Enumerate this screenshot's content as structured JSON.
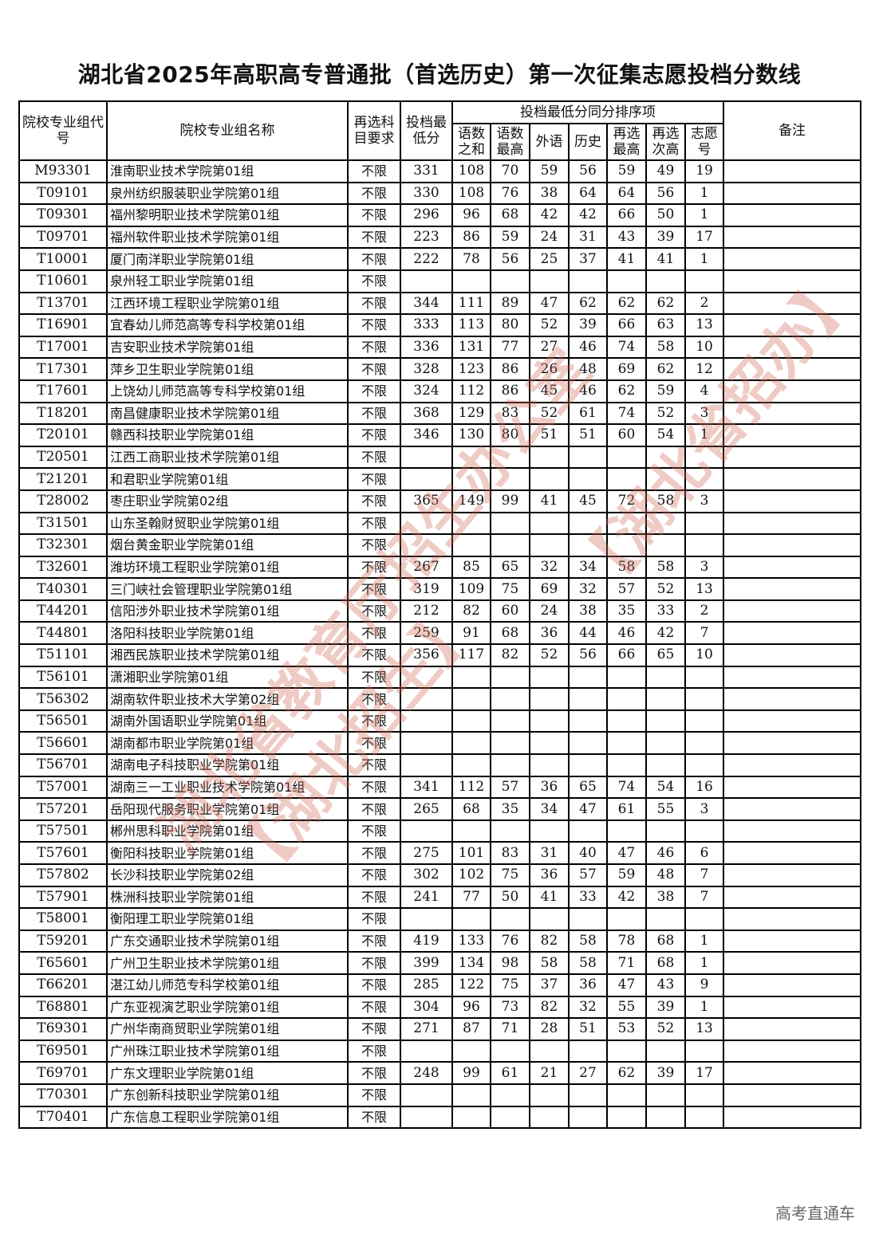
{
  "title": "湖北省2025年高职高专普通批（首选历史）第一次征集志愿投档分数线",
  "headers": {
    "code": "院校专业组代号",
    "name": "院校专业组名称",
    "req": "再选科目要求",
    "score": "投档最低分",
    "tiebreak_group": "投档最低分同分排序项",
    "sub": [
      "语数之和",
      "语数最高",
      "外语",
      "历史",
      "再选最高",
      "再选次高",
      "志愿号"
    ],
    "note": "备注"
  },
  "rows": [
    [
      "M93301",
      "淮南职业技术学院第01组",
      "不限",
      "331",
      "108",
      "70",
      "59",
      "56",
      "59",
      "49",
      "19"
    ],
    [
      "T09101",
      "泉州纺织服装职业学院第01组",
      "不限",
      "330",
      "108",
      "76",
      "38",
      "64",
      "64",
      "56",
      "1"
    ],
    [
      "T09301",
      "福州黎明职业技术学院第01组",
      "不限",
      "296",
      "96",
      "68",
      "42",
      "42",
      "66",
      "50",
      "1"
    ],
    [
      "T09701",
      "福州软件职业技术学院第01组",
      "不限",
      "223",
      "86",
      "59",
      "24",
      "31",
      "43",
      "39",
      "17"
    ],
    [
      "T10001",
      "厦门南洋职业学院第01组",
      "不限",
      "222",
      "78",
      "56",
      "25",
      "37",
      "41",
      "41",
      "1"
    ],
    [
      "T10601",
      "泉州轻工职业学院第01组",
      "不限",
      "",
      "",
      "",
      "",
      "",
      "",
      "",
      ""
    ],
    [
      "T13701",
      "江西环境工程职业学院第01组",
      "不限",
      "344",
      "111",
      "89",
      "47",
      "62",
      "62",
      "62",
      "2"
    ],
    [
      "T16901",
      "宜春幼儿师范高等专科学校第01组",
      "不限",
      "333",
      "113",
      "80",
      "52",
      "39",
      "66",
      "63",
      "13"
    ],
    [
      "T17001",
      "吉安职业技术学院第01组",
      "不限",
      "336",
      "131",
      "77",
      "27",
      "46",
      "74",
      "58",
      "10"
    ],
    [
      "T17301",
      "萍乡卫生职业学院第01组",
      "不限",
      "328",
      "123",
      "86",
      "26",
      "48",
      "69",
      "62",
      "12"
    ],
    [
      "T17601",
      "上饶幼儿师范高等专科学校第01组",
      "不限",
      "324",
      "112",
      "86",
      "45",
      "46",
      "62",
      "59",
      "4"
    ],
    [
      "T18201",
      "南昌健康职业技术学院第01组",
      "不限",
      "368",
      "129",
      "83",
      "52",
      "61",
      "74",
      "52",
      "3"
    ],
    [
      "T20101",
      "赣西科技职业学院第01组",
      "不限",
      "346",
      "130",
      "80",
      "51",
      "51",
      "60",
      "54",
      "1"
    ],
    [
      "T20501",
      "江西工商职业技术学院第01组",
      "不限",
      "",
      "",
      "",
      "",
      "",
      "",
      "",
      ""
    ],
    [
      "T21201",
      "和君职业学院第01组",
      "不限",
      "",
      "",
      "",
      "",
      "",
      "",
      "",
      ""
    ],
    [
      "T28002",
      "枣庄职业学院第02组",
      "不限",
      "365",
      "149",
      "99",
      "41",
      "45",
      "72",
      "58",
      "3"
    ],
    [
      "T31501",
      "山东圣翰财贸职业学院第01组",
      "不限",
      "",
      "",
      "",
      "",
      "",
      "",
      "",
      ""
    ],
    [
      "T32301",
      "烟台黄金职业学院第01组",
      "不限",
      "",
      "",
      "",
      "",
      "",
      "",
      "",
      ""
    ],
    [
      "T32601",
      "潍坊环境工程职业学院第01组",
      "不限",
      "267",
      "85",
      "65",
      "32",
      "34",
      "58",
      "58",
      "3"
    ],
    [
      "T40301",
      "三门峡社会管理职业学院第01组",
      "不限",
      "319",
      "109",
      "75",
      "69",
      "32",
      "57",
      "52",
      "13"
    ],
    [
      "T44201",
      "信阳涉外职业技术学院第01组",
      "不限",
      "212",
      "82",
      "60",
      "24",
      "38",
      "35",
      "33",
      "2"
    ],
    [
      "T44801",
      "洛阳科技职业学院第01组",
      "不限",
      "259",
      "91",
      "68",
      "36",
      "44",
      "46",
      "42",
      "7"
    ],
    [
      "T51101",
      "湘西民族职业技术学院第01组",
      "不限",
      "356",
      "117",
      "82",
      "52",
      "56",
      "66",
      "65",
      "10"
    ],
    [
      "T56101",
      "潇湘职业学院第01组",
      "不限",
      "",
      "",
      "",
      "",
      "",
      "",
      "",
      ""
    ],
    [
      "T56302",
      "湖南软件职业技术大学第02组",
      "不限",
      "",
      "",
      "",
      "",
      "",
      "",
      "",
      ""
    ],
    [
      "T56501",
      "湖南外国语职业学院第01组",
      "不限",
      "",
      "",
      "",
      "",
      "",
      "",
      "",
      ""
    ],
    [
      "T56601",
      "湖南都市职业学院第01组",
      "不限",
      "",
      "",
      "",
      "",
      "",
      "",
      "",
      ""
    ],
    [
      "T56701",
      "湖南电子科技职业学院第01组",
      "不限",
      "",
      "",
      "",
      "",
      "",
      "",
      "",
      ""
    ],
    [
      "T57001",
      "湖南三一工业职业技术学院第01组",
      "不限",
      "341",
      "112",
      "57",
      "36",
      "65",
      "74",
      "54",
      "16"
    ],
    [
      "T57201",
      "岳阳现代服务职业学院第01组",
      "不限",
      "265",
      "68",
      "35",
      "34",
      "47",
      "61",
      "55",
      "3"
    ],
    [
      "T57501",
      "郴州思科职业学院第01组",
      "不限",
      "",
      "",
      "",
      "",
      "",
      "",
      "",
      ""
    ],
    [
      "T57601",
      "衡阳科技职业学院第01组",
      "不限",
      "275",
      "101",
      "83",
      "31",
      "40",
      "47",
      "46",
      "6"
    ],
    [
      "T57802",
      "长沙科技职业学院第02组",
      "不限",
      "302",
      "102",
      "75",
      "36",
      "57",
      "59",
      "48",
      "7"
    ],
    [
      "T57901",
      "株洲科技职业学院第01组",
      "不限",
      "241",
      "77",
      "50",
      "41",
      "33",
      "42",
      "38",
      "7"
    ],
    [
      "T58001",
      "衡阳理工职业学院第01组",
      "不限",
      "",
      "",
      "",
      "",
      "",
      "",
      "",
      ""
    ],
    [
      "T59201",
      "广东交通职业技术学院第01组",
      "不限",
      "419",
      "133",
      "76",
      "82",
      "58",
      "78",
      "68",
      "1"
    ],
    [
      "T65601",
      "广州卫生职业技术学院第01组",
      "不限",
      "399",
      "134",
      "98",
      "58",
      "58",
      "71",
      "68",
      "1"
    ],
    [
      "T66201",
      "湛江幼儿师范专科学校第01组",
      "不限",
      "285",
      "122",
      "75",
      "37",
      "36",
      "47",
      "43",
      "9"
    ],
    [
      "T68801",
      "广东亚视演艺职业学院第01组",
      "不限",
      "304",
      "96",
      "73",
      "82",
      "32",
      "55",
      "39",
      "1"
    ],
    [
      "T69301",
      "广州华南商贸职业学院第01组",
      "不限",
      "271",
      "87",
      "71",
      "28",
      "51",
      "53",
      "52",
      "13"
    ],
    [
      "T69501",
      "广州珠江职业技术学院第01组",
      "不限",
      "",
      "",
      "",
      "",
      "",
      "",
      "",
      ""
    ],
    [
      "T69701",
      "广东文理职业学院第01组",
      "不限",
      "248",
      "99",
      "61",
      "21",
      "27",
      "62",
      "39",
      "17"
    ],
    [
      "T70301",
      "广东创新科技职业学院第01组",
      "不限",
      "",
      "",
      "",
      "",
      "",
      "",
      "",
      ""
    ],
    [
      "T70401",
      "广东信息工程职业学院第01组",
      "不限",
      "",
      "",
      "",
      "",
      "",
      "",
      "",
      ""
    ]
  ],
  "watermark": {
    "line1": "湖北省教育厅招生办公室",
    "line2": "【湖北招生】",
    "line3": "【湖北省招办】",
    "color": "#cd6e5a"
  },
  "footer": "高考直通车"
}
